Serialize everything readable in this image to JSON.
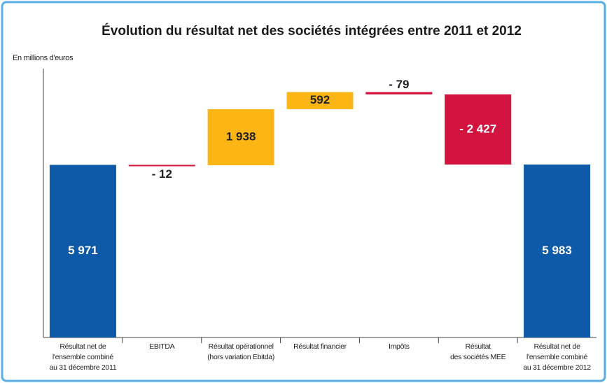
{
  "chart_data": {
    "type": "waterfall",
    "title": "Évolution du résultat net des sociétés intégrées entre 2011 et 2012",
    "y_axis_label": "En millions d'euros",
    "categories": [
      "Résultat net de\nl'ensemble combiné\nau 31 décembre 2011",
      "EBITDA",
      "Résultat opérationnel\n(hors variation Ebitda)",
      "Résultat financier",
      "Impôts",
      "Résultat\ndes sociétés MEE",
      "Résultat net de\nl'ensemble combiné\nau 31 décembre 2012"
    ],
    "measure": [
      "absolute",
      "relative",
      "relative",
      "relative",
      "relative",
      "relative",
      "total"
    ],
    "values": [
      5971,
      -12,
      1938,
      592,
      -79,
      -2427,
      5983
    ],
    "value_labels": [
      "5 971",
      "- 12",
      "1 938",
      "592",
      "- 79",
      "- 2 427",
      "5 983"
    ],
    "total_color": "#0f5aa8",
    "increase_color": "#fbb616",
    "decrease_color": "#d2133f",
    "ylim": [
      0,
      9300
    ]
  }
}
